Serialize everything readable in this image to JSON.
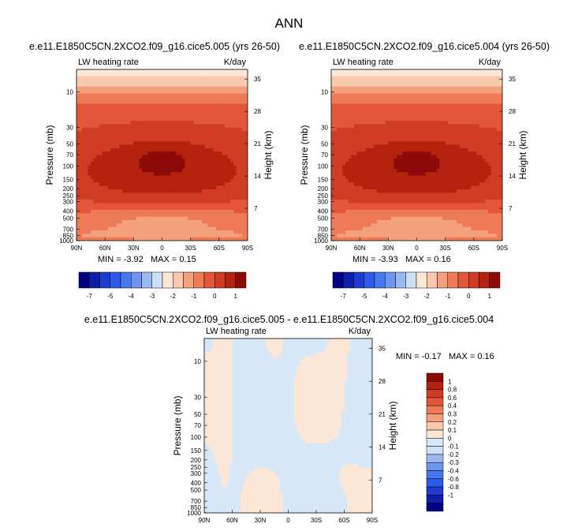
{
  "page_title": "ANN",
  "colors": {
    "levels_abs": [
      "#000080",
      "#0d1ea8",
      "#1e3cd0",
      "#2d5ae6",
      "#4678f0",
      "#6e96f0",
      "#9cb8f0",
      "#cde0f5",
      "#fce6d6",
      "#fac8ac",
      "#f5a07d",
      "#ee7a58",
      "#e3563a",
      "#d03c24",
      "#b4230f",
      "#8c0a08"
    ],
    "levels_diff": [
      "#000080",
      "#0d1ea8",
      "#1e3cd0",
      "#2d5ae6",
      "#4678f0",
      "#6e96f0",
      "#9cb8f0",
      "#cde0f5",
      "#d6e8f8",
      "#fce6d6",
      "#fac8ac",
      "#f5a07d",
      "#ee7a58",
      "#e3563a",
      "#d03c24",
      "#b4230f",
      "#8c0a08"
    ]
  },
  "axes": {
    "pressure_label": "Pressure (mb)",
    "height_label": "Height (km)",
    "pressure_ticks": [
      "10",
      "30",
      "50",
      "70",
      "100",
      "150",
      "200",
      "250",
      "300",
      "400",
      "500",
      "700",
      "850",
      "1000"
    ],
    "height_ticks": [
      "35",
      "28",
      "21",
      "14",
      "7"
    ],
    "lat_ticks": [
      "90N",
      "60N",
      "30N",
      "0",
      "30S",
      "60S",
      "90S"
    ]
  },
  "panels": [
    {
      "title": "e.e11.E1850C5CN.2XCO2.f09_g16.cice5.005 (yrs 26-50)",
      "left_label": "LW heating rate",
      "right_label": "K/day",
      "min_label": "MIN = ",
      "min_value": "-3.92",
      "max_label": "MAX = ",
      "max_value": "0.15"
    },
    {
      "title": "e.e11.E1850C5CN.2XCO2.f09_g16.cice5.004 (yrs 26-50)",
      "left_label": "LW heating rate",
      "right_label": "K/day",
      "min_label": "MIN = ",
      "min_value": "-3.93",
      "max_label": "MAX = ",
      "max_value": "0.16"
    },
    {
      "title": "e.e11.E1850C5CN.2XCO2.f09_g16.cice5.005 - e.e11.E1850C5CN.2XCO2.f09_g16.cice5.004",
      "left_label": "LW heating rate",
      "right_label": "K/day",
      "min_label": "MIN = ",
      "min_value": "-0.17",
      "max_label": "MAX = ",
      "max_value": "0.16"
    }
  ],
  "colorbar_abs_labels": [
    "-7",
    "-5",
    "-4",
    "-3",
    "-2",
    "-1",
    "0",
    "1"
  ],
  "colorbar_diff_labels": [
    "1",
    "0.8",
    "0.6",
    "0.4",
    "0.3",
    "0.2",
    "0.1",
    "0",
    "-0.1",
    "-0.2",
    "-0.3",
    "-0.4",
    "-0.6",
    "-0.8",
    "-1"
  ],
  "chart_data": [
    {
      "type": "heatmap",
      "title": "e.e11.E1850C5CN.2XCO2.f09_g16.cice5.005 (yrs 26-50)",
      "xlabel": "",
      "ylabel": "Pressure (mb)",
      "y2label": "Height (km)",
      "x_ticks": [
        "90N",
        "60N",
        "30N",
        "0",
        "30S",
        "60S",
        "90S"
      ],
      "y_ticks": [
        10,
        30,
        50,
        70,
        100,
        150,
        200,
        250,
        300,
        400,
        500,
        700,
        850,
        1000
      ],
      "y2_ticks": [
        35,
        28,
        21,
        14,
        7
      ],
      "contour_levels": [
        -7,
        -5,
        -4,
        -3,
        -2,
        -1,
        0,
        1
      ],
      "min": -3.92,
      "max": 0.15,
      "units": "K/day",
      "field": "LW heating rate"
    },
    {
      "type": "heatmap",
      "title": "e.e11.E1850C5CN.2XCO2.f09_g16.cice5.004 (yrs 26-50)",
      "xlabel": "",
      "ylabel": "Pressure (mb)",
      "y2label": "Height (km)",
      "x_ticks": [
        "90N",
        "60N",
        "30N",
        "0",
        "30S",
        "60S",
        "90S"
      ],
      "y_ticks": [
        10,
        30,
        50,
        70,
        100,
        150,
        200,
        250,
        300,
        400,
        500,
        700,
        850,
        1000
      ],
      "y2_ticks": [
        35,
        28,
        21,
        14,
        7
      ],
      "contour_levels": [
        -7,
        -5,
        -4,
        -3,
        -2,
        -1,
        0,
        1
      ],
      "min": -3.93,
      "max": 0.16,
      "units": "K/day",
      "field": "LW heating rate"
    },
    {
      "type": "heatmap",
      "title": "e.e11.E1850C5CN.2XCO2.f09_g16.cice5.005 - e.e11.E1850C5CN.2XCO2.f09_g16.cice5.004",
      "xlabel": "",
      "ylabel": "Pressure (mb)",
      "y2label": "Height (km)",
      "x_ticks": [
        "90N",
        "60N",
        "30N",
        "0",
        "30S",
        "60S",
        "90S"
      ],
      "y_ticks": [
        10,
        30,
        50,
        70,
        100,
        150,
        200,
        250,
        300,
        400,
        500,
        700,
        850,
        1000
      ],
      "y2_ticks": [
        35,
        28,
        21,
        14,
        7
      ],
      "contour_levels": [
        -1,
        -0.8,
        -0.6,
        -0.4,
        -0.3,
        -0.2,
        -0.1,
        0,
        0.1,
        0.2,
        0.3,
        0.4,
        0.6,
        0.8,
        1
      ],
      "min": -0.17,
      "max": 0.16,
      "units": "K/day",
      "field": "LW heating rate"
    }
  ]
}
